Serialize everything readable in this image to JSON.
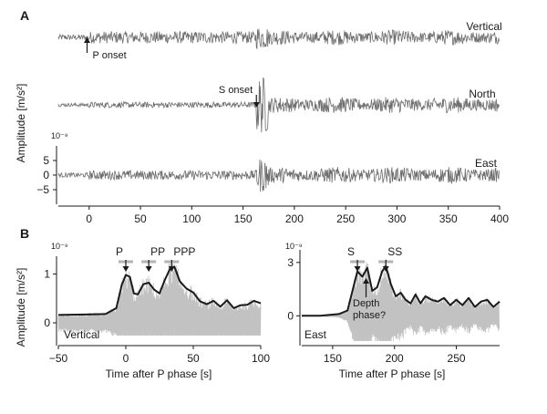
{
  "figure": {
    "panel_a_letter": "A",
    "panel_b_letter": "B"
  },
  "colors": {
    "trace": "#6e6e6e",
    "envelope": "#1a1a1a",
    "trace_light": "#c2c2c2",
    "marker": "#b3b3b3",
    "axis": "#1a1a1a"
  },
  "chart_data": [
    {
      "type": "line",
      "panel": "A",
      "ylabel": "Amplitude [m/s²]",
      "y_exponent": "10⁻⁹",
      "xlim": [
        -30,
        400
      ],
      "xticks": [
        "0",
        "50",
        "100",
        "150",
        "200",
        "250",
        "300",
        "350",
        "400"
      ],
      "xtick_values": [
        0,
        50,
        100,
        150,
        200,
        250,
        300,
        350,
        400
      ],
      "ylim": [
        -7,
        7
      ],
      "yticks": [
        "5",
        "0",
        "−5"
      ],
      "ytick_values": [
        5,
        0,
        -5
      ],
      "grid": false,
      "series": [
        {
          "name": "Vertical",
          "noise_amp": 1.0,
          "post_p_amp": 2.1,
          "s_amp": 4.0,
          "coda_amp": 2.6
        },
        {
          "name": "North",
          "noise_amp": 0.6,
          "post_p_amp": 1.0,
          "s_amp": 10.0,
          "coda_amp": 2.8
        },
        {
          "name": "East",
          "noise_amp": 0.8,
          "post_p_amp": 1.6,
          "s_amp": 6.0,
          "coda_amp": 2.8
        }
      ],
      "annotations": [
        {
          "text": "P onset",
          "x": -2,
          "series": "Vertical"
        },
        {
          "text": "S onset",
          "x": 163,
          "series": "North"
        }
      ]
    },
    {
      "type": "line",
      "panel": "B-left",
      "ylabel": "Amplitude [m/s²]",
      "xlabel": "Time after P phase [s]",
      "y_exponent": "10⁻⁹",
      "xlim": [
        -50,
        100
      ],
      "xticks": [
        "−50",
        "0",
        "50",
        "100"
      ],
      "xtick_values": [
        -50,
        0,
        50,
        100
      ],
      "ylim": [
        0,
        1.25
      ],
      "yticks": [
        "0",
        "1"
      ],
      "ytick_values": [
        0,
        1
      ],
      "grid": false,
      "channel_label": "Vertical",
      "envelope": {
        "x": [
          -50,
          -30,
          -15,
          -7,
          -3,
          0,
          3,
          6,
          9,
          13,
          17,
          21,
          25,
          29,
          33,
          36,
          40,
          45,
          50,
          55,
          60,
          65,
          70,
          75,
          80,
          85,
          90,
          95,
          100
        ],
        "y": [
          0.16,
          0.17,
          0.18,
          0.3,
          0.78,
          0.98,
          0.94,
          0.6,
          0.58,
          0.79,
          0.82,
          0.68,
          0.6,
          0.88,
          1.12,
          1.15,
          0.85,
          0.7,
          0.62,
          0.44,
          0.38,
          0.45,
          0.33,
          0.46,
          0.3,
          0.36,
          0.37,
          0.45,
          0.4
        ]
      },
      "phase_markers": [
        {
          "label": "P",
          "x": 0
        },
        {
          "label": "PP",
          "x": 17
        },
        {
          "label": "PPP",
          "x": 34
        }
      ]
    },
    {
      "type": "line",
      "panel": "B-right",
      "xlabel": "Time after P phase [s]",
      "y_exponent": "10⁻⁹",
      "xlim": [
        125,
        285
      ],
      "xticks": [
        "150",
        "200",
        "250"
      ],
      "xtick_values": [
        150,
        200,
        250
      ],
      "ylim": [
        -0.7,
        3.4
      ],
      "yticks": [
        "0",
        "3"
      ],
      "ytick_values": [
        0,
        3
      ],
      "grid": false,
      "channel_label": "East",
      "envelope": {
        "x": [
          125,
          140,
          155,
          162,
          166,
          170,
          174,
          178,
          182,
          186,
          190,
          193,
          197,
          201,
          205,
          209,
          213,
          217,
          221,
          225,
          230,
          235,
          240,
          245,
          250,
          255,
          260,
          265,
          270,
          275,
          280,
          285
        ],
        "y": [
          0.0,
          0.0,
          0.1,
          0.3,
          1.4,
          2.5,
          2.2,
          2.7,
          1.4,
          1.6,
          2.5,
          2.8,
          1.8,
          1.1,
          1.3,
          0.9,
          0.7,
          1.2,
          0.7,
          1.1,
          0.9,
          0.8,
          1.0,
          0.6,
          0.9,
          0.6,
          1.0,
          0.5,
          0.8,
          0.9,
          0.5,
          0.8
        ]
      },
      "phase_markers": [
        {
          "label": "S",
          "x": 170
        },
        {
          "label": "SS",
          "x": 193
        }
      ],
      "depth_marker": {
        "label_line1": "Depth",
        "label_line2": "phase?",
        "x": 177
      }
    }
  ]
}
